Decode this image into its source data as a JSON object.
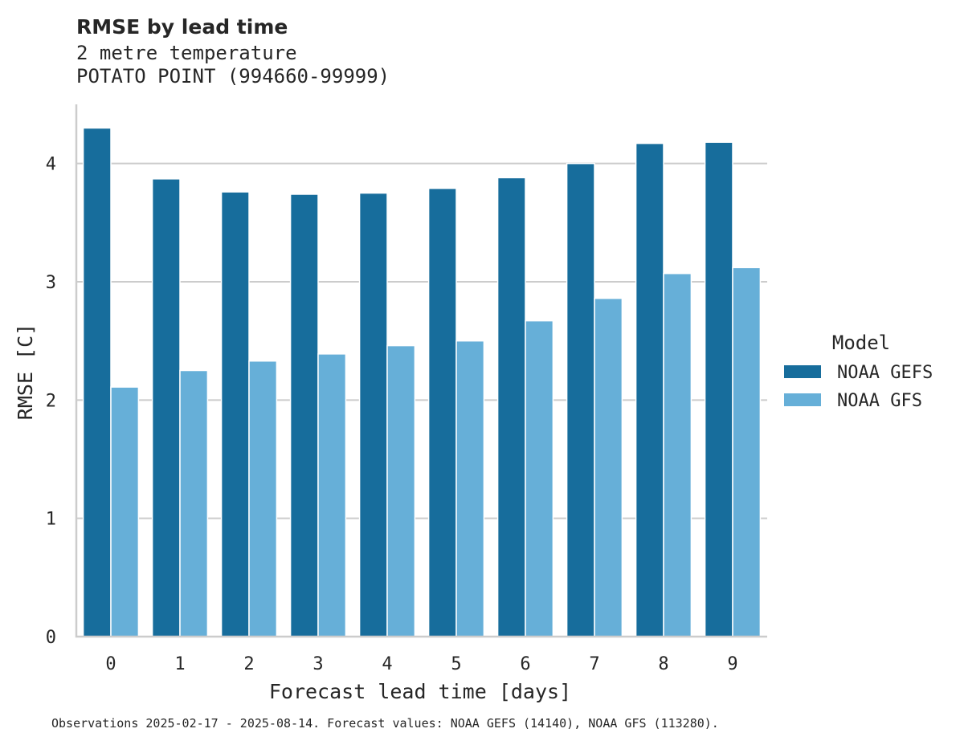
{
  "title": "RMSE by lead time",
  "subtitle_line1": "2 metre temperature",
  "subtitle_line2": "POTATO POINT (994660-99999)",
  "footnote": "Observations 2025-02-17 - 2025-08-14. Forecast values: NOAA GEFS (14140), NOAA GFS (113280).",
  "chart_data": {
    "type": "bar",
    "title": "RMSE by lead time",
    "xlabel": "Forecast lead time [days]",
    "ylabel": "RMSE [C]",
    "categories": [
      "0",
      "1",
      "2",
      "3",
      "4",
      "5",
      "6",
      "7",
      "8",
      "9"
    ],
    "ylim": [
      0,
      4.5
    ],
    "yticks": [
      0,
      1,
      2,
      3,
      4
    ],
    "grid": "horizontal",
    "legend": {
      "title": "Model",
      "placement": "right"
    },
    "series": [
      {
        "name": "NOAA GEFS",
        "color": "#176d9c",
        "values": [
          4.3,
          3.87,
          3.76,
          3.74,
          3.75,
          3.79,
          3.88,
          4.0,
          4.17,
          4.18
        ]
      },
      {
        "name": "NOAA GFS",
        "color": "#66afd8",
        "values": [
          2.11,
          2.25,
          2.33,
          2.39,
          2.46,
          2.5,
          2.67,
          2.86,
          3.07,
          3.12
        ]
      }
    ]
  }
}
